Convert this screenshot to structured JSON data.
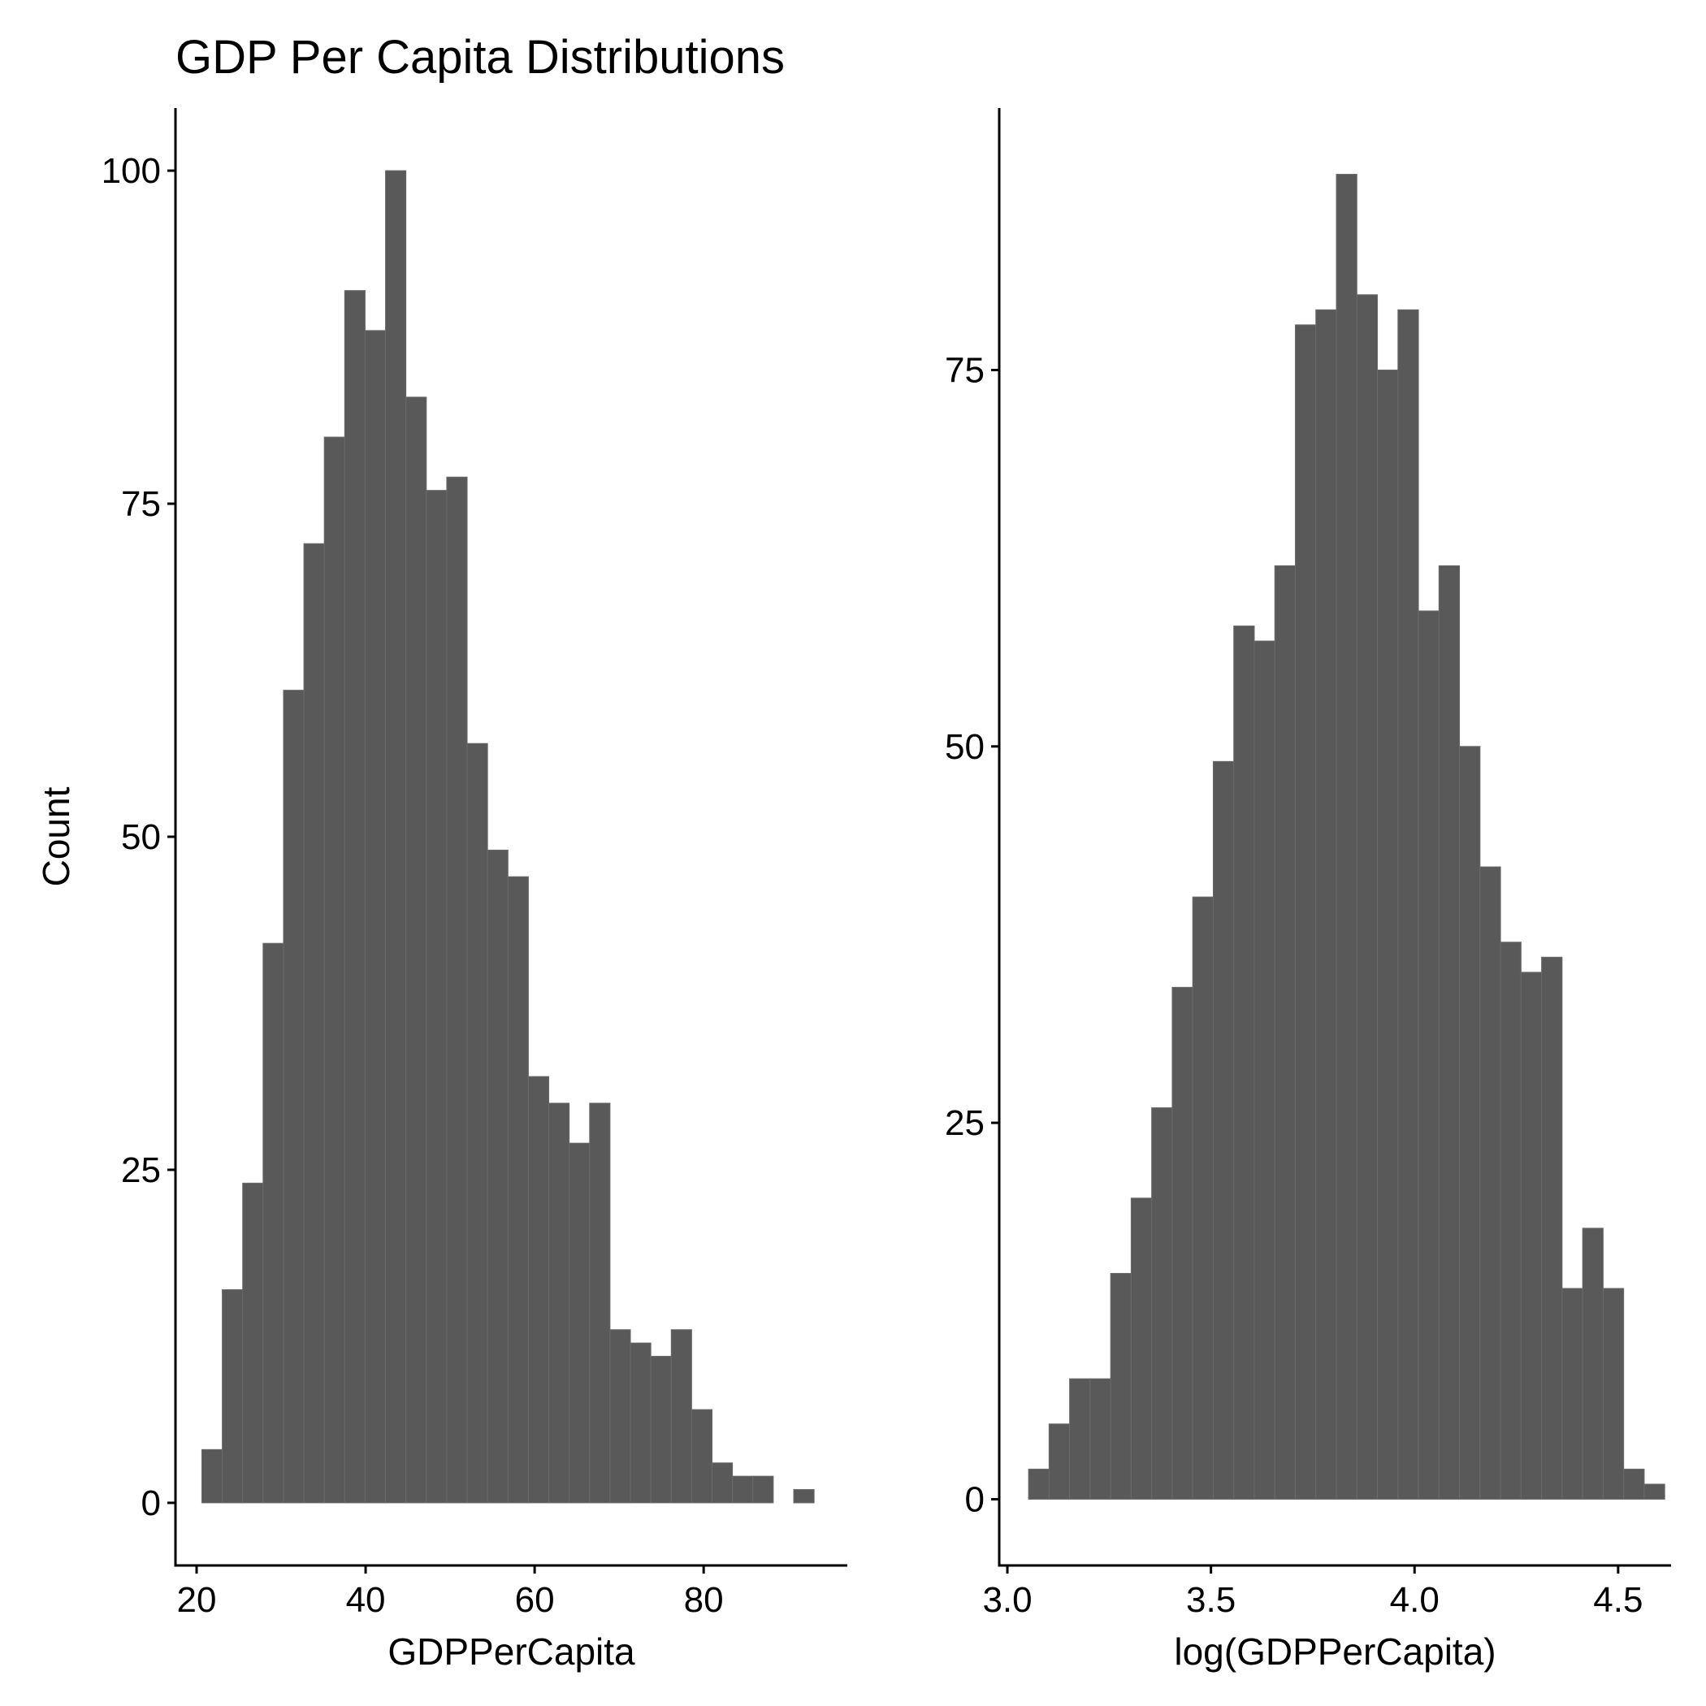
{
  "title": "GDP Per Capita Distributions",
  "colors": {
    "bar_fill": "#595959",
    "bar_edge": "#6a6a6a",
    "axis": "#000000",
    "background": "#ffffff"
  },
  "chart_data": [
    {
      "type": "bar",
      "subtype": "histogram",
      "xlabel": "GDPPerCapita",
      "ylabel": "Count",
      "xlim": [
        17.5,
        97.0
      ],
      "ylim": [
        -4.7,
        104.7
      ],
      "xticks": [
        "20",
        "40",
        "60",
        "80"
      ],
      "xtick_values": [
        20,
        40,
        60,
        80
      ],
      "yticks": [
        "0",
        "25",
        "50",
        "75",
        "100"
      ],
      "ytick_values": [
        0,
        25,
        50,
        75,
        100
      ],
      "bin_width": 2.415,
      "bin_start": 20.62,
      "values": [
        4,
        16,
        24,
        42,
        61,
        72,
        80,
        91,
        88,
        100,
        83,
        76,
        77,
        57,
        49,
        47,
        32,
        30,
        27,
        30,
        13,
        12,
        11,
        13,
        7,
        3,
        2,
        2,
        0,
        1
      ],
      "grid": false,
      "legend": "none"
    },
    {
      "type": "bar",
      "subtype": "histogram",
      "xlabel": "log(GDPPerCapita)",
      "ylabel": "",
      "xlim": [
        2.98,
        4.63
      ],
      "ylim": [
        -4.4,
        92.4
      ],
      "xticks": [
        "3.0",
        "3.5",
        "4.0",
        "4.5"
      ],
      "xtick_values": [
        3.0,
        3.5,
        4.0,
        4.5
      ],
      "yticks": [
        "0",
        "25",
        "50",
        "75"
      ],
      "ytick_values": [
        0,
        25,
        50,
        75
      ],
      "bin_width": 0.0504,
      "bin_start": 3.052,
      "values": [
        2,
        5,
        8,
        8,
        15,
        20,
        26,
        34,
        40,
        49,
        58,
        57,
        62,
        78,
        79,
        88,
        80,
        75,
        79,
        59,
        62,
        50,
        42,
        37,
        35,
        36,
        14,
        18,
        14,
        2,
        1
      ],
      "grid": false,
      "legend": "none"
    }
  ]
}
